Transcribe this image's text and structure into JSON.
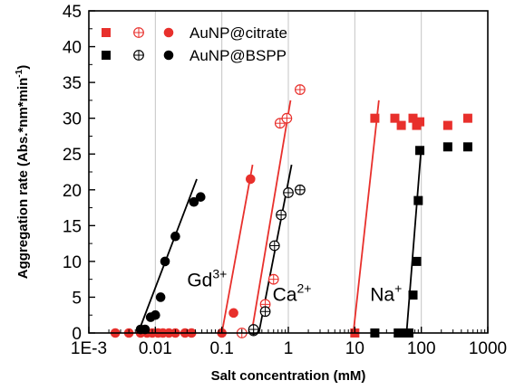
{
  "chart_data": {
    "type": "scatter",
    "x_scale": "log",
    "xlim": [
      0.001,
      1000
    ],
    "ylim": [
      0,
      45
    ],
    "xlabel": "Salt concentration (mM)",
    "ylabel": "Aggregation rate (Abs.*nm*min",
    "ylabel_sup": "-1",
    "ylabel_close": ")",
    "x_ticks": [
      {
        "value": 0.001,
        "label": "1E-3"
      },
      {
        "value": 0.01,
        "label": "0.01"
      },
      {
        "value": 0.1,
        "label": "0.1"
      },
      {
        "value": 1,
        "label": "1"
      },
      {
        "value": 10,
        "label": "10"
      },
      {
        "value": 100,
        "label": "100"
      },
      {
        "value": 1000,
        "label": "1000"
      }
    ],
    "y_ticks": [
      0,
      5,
      10,
      15,
      20,
      25,
      30,
      35,
      40,
      45
    ],
    "grid": "vertical at decades",
    "legend_position": "top",
    "legend": [
      {
        "label": "AuNP@citrate",
        "color": "#e8302c",
        "markers": [
          "square",
          "crossed-circle",
          "circle"
        ]
      },
      {
        "label": "AuNP@BSPP",
        "color": "#000000",
        "markers": [
          "square",
          "crossed-circle",
          "circle"
        ]
      }
    ],
    "annotations": [
      {
        "base": "Gd",
        "sup": "3+",
        "x": 0.03,
        "y": 6.5
      },
      {
        "base": "Ca",
        "sup": "2+",
        "x": 0.58,
        "y": 4.5
      },
      {
        "base": "Na",
        "sup": "+",
        "x": 17,
        "y": 4.5
      }
    ],
    "series": [
      {
        "name": "AuNP@citrate",
        "salt": "Gd3+",
        "marker": "circle",
        "color": "#e8302c",
        "x": [
          0.0025,
          0.004,
          0.006,
          0.0075,
          0.009,
          0.011,
          0.013,
          0.016,
          0.02,
          0.028,
          0.035,
          0.1,
          0.15,
          0.27
        ],
        "y": [
          0,
          0,
          0,
          0,
          0,
          0,
          0,
          0,
          0,
          0,
          0,
          0,
          2.8,
          21.5
        ]
      },
      {
        "name": "AuNP@BSPP",
        "salt": "Gd3+",
        "marker": "circle",
        "color": "#000000",
        "x": [
          0.006,
          0.007,
          0.0085,
          0.01,
          0.012,
          0.014,
          0.02,
          0.038,
          0.048
        ],
        "y": [
          0.5,
          0.5,
          2.2,
          2.5,
          5,
          10,
          13.5,
          18.3,
          19
        ]
      },
      {
        "name": "AuNP@citrate",
        "salt": "Ca2+",
        "marker": "crossed-circle",
        "color": "#e8302c",
        "x": [
          0.2,
          0.45,
          0.6,
          0.75,
          0.95,
          1.5
        ],
        "y": [
          0,
          4,
          7.5,
          29.3,
          30,
          34
        ]
      },
      {
        "name": "AuNP@BSPP",
        "salt": "Ca2+",
        "marker": "crossed-circle",
        "color": "#000000",
        "x": [
          0.3,
          0.3,
          0.45,
          0.62,
          0.78,
          1.0,
          1.5
        ],
        "y": [
          0.3,
          0.5,
          3,
          12.2,
          16.5,
          19.6,
          20
        ]
      },
      {
        "name": "AuNP@citrate",
        "salt": "Na+",
        "marker": "square",
        "color": "#e8302c",
        "x": [
          10,
          20,
          40,
          50,
          75,
          85,
          95,
          250,
          500
        ],
        "y": [
          0,
          30,
          30,
          29,
          30,
          29,
          29.5,
          29,
          30
        ]
      },
      {
        "name": "AuNP@BSPP",
        "salt": "Na+",
        "marker": "square",
        "color": "#000000",
        "x": [
          20,
          45,
          55,
          65,
          75,
          85,
          90,
          95,
          250,
          500
        ],
        "y": [
          0,
          0,
          0,
          0,
          5.3,
          10,
          18.5,
          25.5,
          26,
          26
        ]
      }
    ],
    "fit_lines": [
      {
        "name": "Gd3+ citrate fit",
        "color": "#e8302c",
        "x": [
          0.1,
          0.29
        ],
        "y": [
          0,
          23.5
        ]
      },
      {
        "name": "Gd3+ BSPP fit",
        "color": "#000000",
        "x": [
          0.0055,
          0.042
        ],
        "y": [
          0,
          21.5
        ]
      },
      {
        "name": "Ca2+ citrate fit",
        "color": "#e8302c",
        "x": [
          0.28,
          1.08
        ],
        "y": [
          0,
          32.5
        ]
      },
      {
        "name": "Ca2+ BSPP fit",
        "color": "#000000",
        "x": [
          0.36,
          1.12
        ],
        "y": [
          0,
          23.5
        ]
      },
      {
        "name": "Na+ citrate fit",
        "color": "#e8302c",
        "x": [
          9.5,
          23
        ],
        "y": [
          0,
          32.5
        ]
      },
      {
        "name": "Na+ BSPP fit",
        "color": "#000000",
        "x": [
          60,
          100
        ],
        "y": [
          0,
          26
        ]
      }
    ]
  }
}
